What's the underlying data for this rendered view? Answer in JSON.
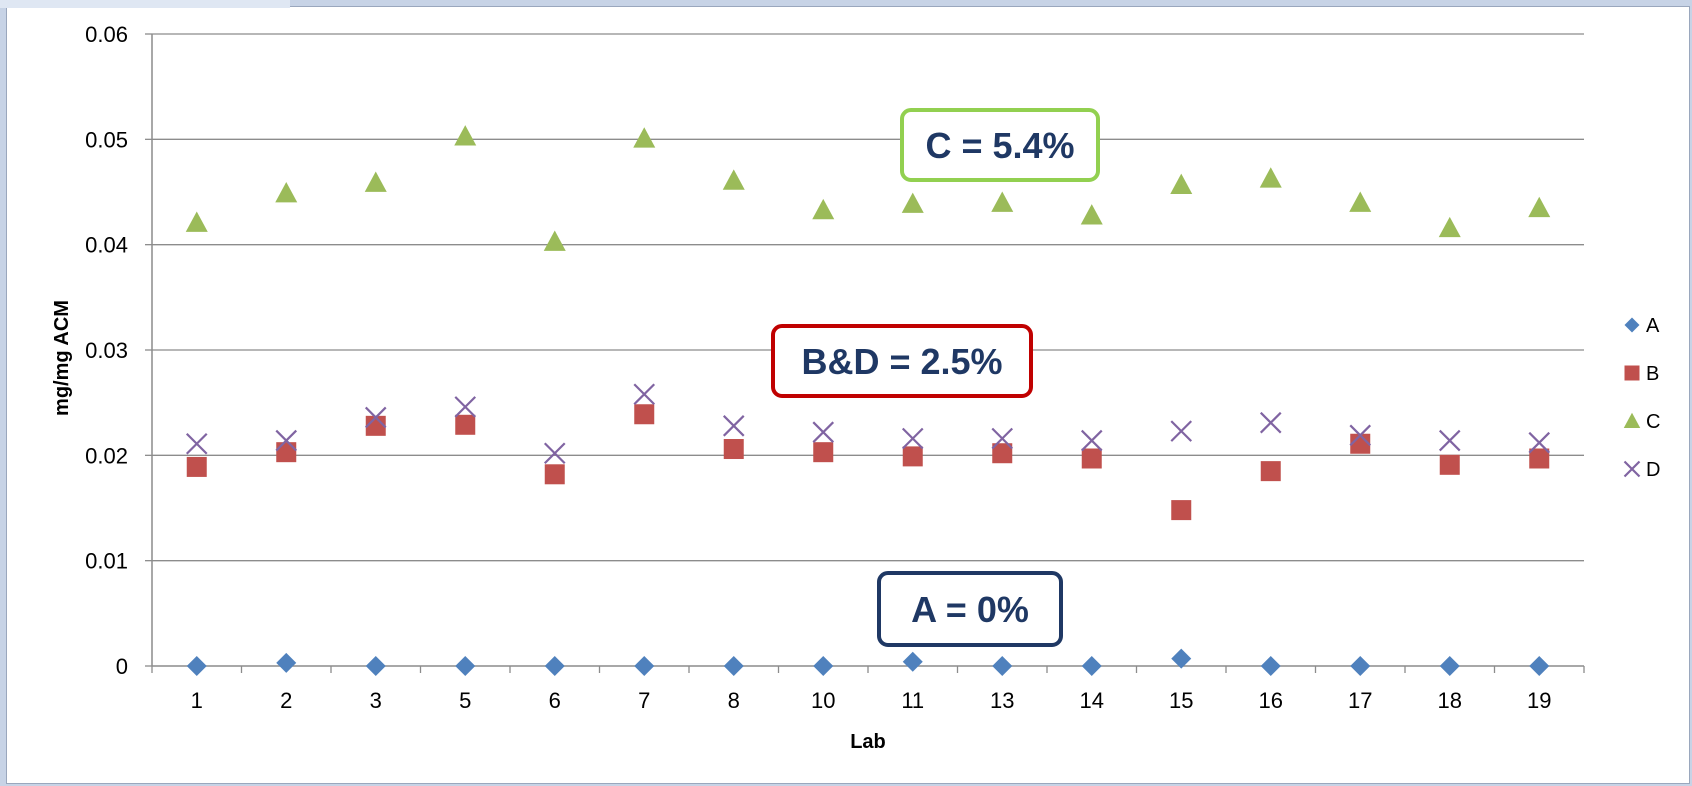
{
  "chart_data": {
    "type": "scatter",
    "title": "",
    "xlabel": "Lab",
    "ylabel": "mg/mg ACM",
    "ylim": [
      0,
      0.06
    ],
    "yticks": [
      "0",
      "0.01",
      "0.02",
      "0.03",
      "0.04",
      "0.05",
      "0.06"
    ],
    "categories": [
      "1",
      "2",
      "3",
      "5",
      "6",
      "7",
      "8",
      "10",
      "11",
      "13",
      "14",
      "15",
      "16",
      "17",
      "18",
      "19"
    ],
    "grid": "horizontal",
    "legend_position": "right",
    "series": [
      {
        "name": "A",
        "marker": "diamond",
        "color": "#4f81bd",
        "values": [
          0,
          0.0003,
          0,
          0,
          0,
          0,
          0,
          0,
          0.0004,
          0,
          0,
          0.0007,
          0,
          0,
          0,
          0
        ]
      },
      {
        "name": "B",
        "marker": "square",
        "color": "#c0504d",
        "values": [
          0.0189,
          0.0203,
          0.0228,
          0.0229,
          0.0182,
          0.0239,
          0.0206,
          0.0203,
          0.0199,
          0.0202,
          0.0197,
          0.0148,
          0.0185,
          0.0211,
          0.0191,
          0.0197
        ]
      },
      {
        "name": "C",
        "marker": "triangle",
        "color": "#9bbb59",
        "values": [
          0.0421,
          0.0449,
          0.0459,
          0.0503,
          0.0403,
          0.0501,
          0.0461,
          0.0433,
          0.0439,
          0.044,
          0.0428,
          0.0457,
          0.0463,
          0.044,
          0.0416,
          0.0435
        ]
      },
      {
        "name": "D",
        "marker": "x",
        "color": "#8064a2",
        "values": [
          0.0211,
          0.0214,
          0.0236,
          0.0246,
          0.0202,
          0.0258,
          0.0228,
          0.0222,
          0.0216,
          0.0216,
          0.0214,
          0.0223,
          0.0231,
          0.0219,
          0.0214,
          0.0212
        ]
      }
    ],
    "annotations": [
      {
        "id": "c",
        "text": "C = 5.4%",
        "border": "#92d050"
      },
      {
        "id": "bd",
        "text": "B&D = 2.5%",
        "border": "#c00000"
      },
      {
        "id": "a",
        "text": "A = 0%",
        "border": "#1f3864"
      }
    ]
  }
}
